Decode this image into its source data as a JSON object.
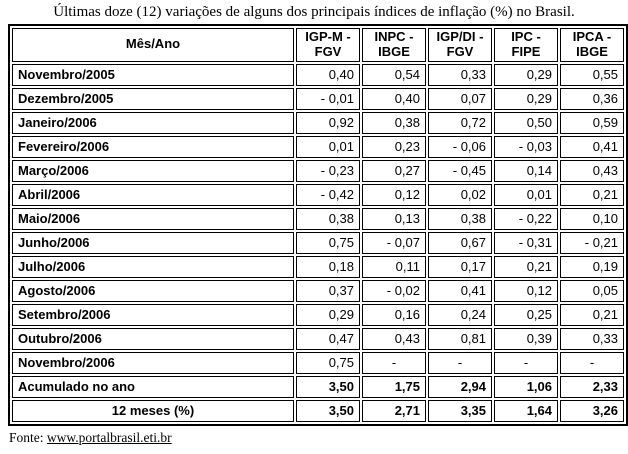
{
  "title": "Últimas doze (12) variações de alguns dos principais índices de inflação (%) no Brasil.",
  "table": {
    "month_col_header": "Mês/Ano",
    "index_columns": [
      {
        "line1": "IGP-M -",
        "line2": "FGV"
      },
      {
        "line1": "INPC -",
        "line2": "IBGE"
      },
      {
        "line1": "IGP/DI -",
        "line2": "FGV"
      },
      {
        "line1": "IPC -",
        "line2": "FIPE"
      },
      {
        "line1": "IPCA -",
        "line2": "IBGE"
      }
    ],
    "rows": [
      {
        "label": "Novembro/2005",
        "values": [
          "0,40",
          "0,54",
          "0,33",
          "0,29",
          "0,55"
        ]
      },
      {
        "label": "Dezembro/2005",
        "values": [
          "- 0,01",
          "0,40",
          "0,07",
          "0,29",
          "0,36"
        ]
      },
      {
        "label": "Janeiro/2006",
        "values": [
          "0,92",
          "0,38",
          "0,72",
          "0,50",
          "0,59"
        ]
      },
      {
        "label": "Fevereiro/2006",
        "values": [
          "0,01",
          "0,23",
          "- 0,06",
          "- 0,03",
          "0,41"
        ]
      },
      {
        "label": "Março/2006",
        "values": [
          "- 0,23",
          "0,27",
          "- 0,45",
          "0,14",
          "0,43"
        ]
      },
      {
        "label": "Abril/2006",
        "values": [
          "- 0,42",
          "0,12",
          "0,02",
          "0,01",
          "0,21"
        ]
      },
      {
        "label": "Maio/2006",
        "values": [
          "0,38",
          "0,13",
          "0,38",
          "- 0,22",
          "0,10"
        ]
      },
      {
        "label": "Junho/2006",
        "values": [
          "0,75",
          "- 0,07",
          "0,67",
          "- 0,31",
          "- 0,21"
        ]
      },
      {
        "label": "Julho/2006",
        "values": [
          "0,18",
          "0,11",
          "0,17",
          "0,21",
          "0,19"
        ]
      },
      {
        "label": "Agosto/2006",
        "values": [
          "0,37",
          "- 0,02",
          "0,41",
          "0,12",
          "0,05"
        ]
      },
      {
        "label": "Setembro/2006",
        "values": [
          "0,29",
          "0,16",
          "0,24",
          "0,25",
          "0,21"
        ]
      },
      {
        "label": "Outubro/2006",
        "values": [
          "0,47",
          "0,43",
          "0,81",
          "0,39",
          "0,33"
        ]
      },
      {
        "label": "Novembro/2006",
        "values": [
          "0,75",
          "-",
          "-",
          "-",
          "-"
        ]
      }
    ],
    "summary_rows": [
      {
        "label": "Acumulado no ano",
        "label_align": "left",
        "values": [
          "3,50",
          "1,75",
          "2,94",
          "1,06",
          "2,33"
        ]
      },
      {
        "label": "12 meses (%)",
        "label_align": "center",
        "values": [
          "3,50",
          "2,71",
          "3,35",
          "1,64",
          "3,26"
        ]
      }
    ]
  },
  "footer": {
    "label": "Fonte:",
    "link": "www.portalbrasil.eti.br"
  }
}
